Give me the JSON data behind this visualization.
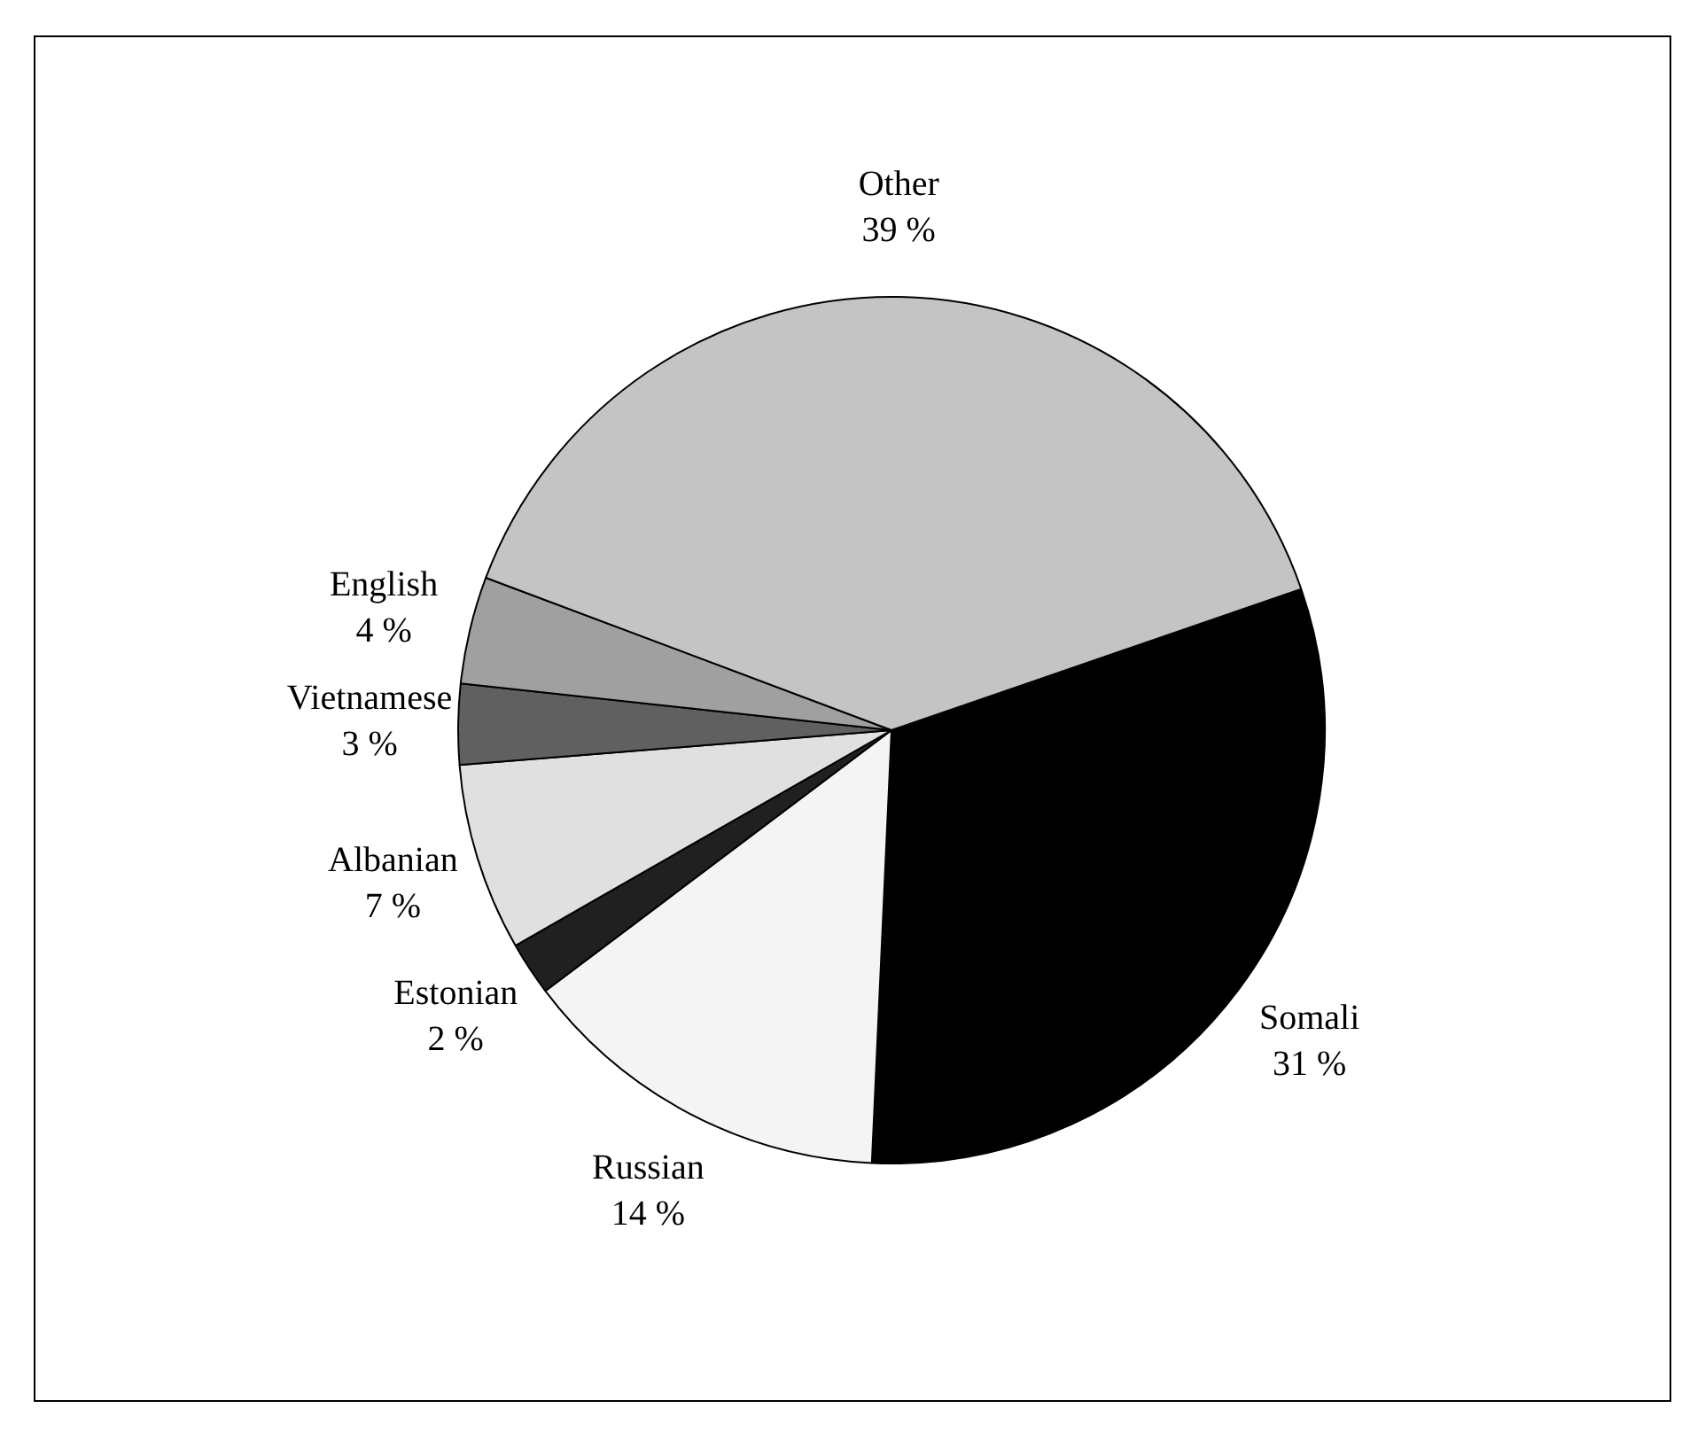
{
  "chart_data": {
    "type": "pie",
    "categories": [
      "Somali",
      "Russian",
      "Estonian",
      "Albanian",
      "Vietnamese",
      "English",
      "Other"
    ],
    "values": [
      31,
      14,
      2,
      7,
      3,
      4,
      39
    ],
    "value_labels": [
      "31 %",
      "14 %",
      "2 %",
      "7 %",
      "3 %",
      "4 %",
      "39 %"
    ],
    "colors": [
      "#000000",
      "#f4f4f4",
      "#202020",
      "#e0e0e0",
      "#606060",
      "#a0a0a0",
      "#c4c4c4"
    ],
    "legend": false
  }
}
